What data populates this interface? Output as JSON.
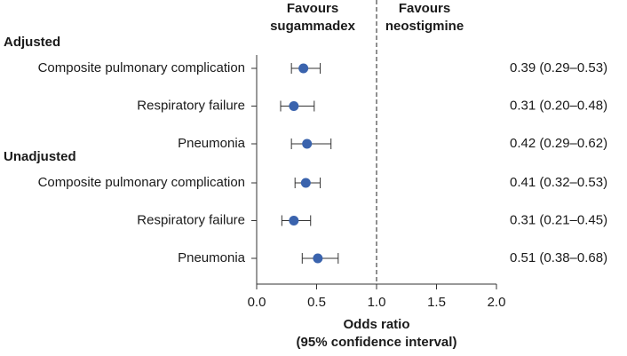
{
  "chart_data": {
    "type": "forest",
    "favours_left": [
      "Favours",
      "sugammadex"
    ],
    "favours_right": [
      "Favours",
      "neostigmine"
    ],
    "xlabel": [
      "Odds ratio",
      "(95% confidence interval)"
    ],
    "color": "#3a63ad",
    "reference_line": 1,
    "xlim": [
      0,
      2
    ],
    "xticks": [
      {
        "value": 0,
        "label": "0.0"
      },
      0.5,
      {
        "value": 1,
        "label": "1.0"
      },
      1.5,
      {
        "value": 2,
        "label": "2.0"
      }
    ],
    "groups": [
      {
        "name": "Adjusted",
        "categories": [
          "Composite pulmonary complication",
          "Respiratory failure",
          "Pneumonia"
        ],
        "values": [
          0.39,
          0.31,
          0.42
        ],
        "lower": [
          0.29,
          0.2,
          0.29
        ],
        "upper": [
          0.53,
          0.48,
          0.62
        ],
        "value_labels": [
          "0.39 (0.29–0.53)",
          "0.31 (0.20–0.48)",
          "0.42 (0.29–0.62)"
        ]
      },
      {
        "name": "Unadjusted",
        "categories": [
          "Composite pulmonary complication",
          "Respiratory failure",
          "Pneumonia"
        ],
        "values": [
          0.41,
          0.31,
          0.51
        ],
        "lower": [
          0.32,
          0.21,
          0.38
        ],
        "upper": [
          0.53,
          0.45,
          0.68
        ],
        "value_labels": [
          "0.41 (0.32–0.53)",
          "0.31 (0.21–0.45)",
          "0.51 (0.38–0.68)"
        ]
      }
    ]
  }
}
